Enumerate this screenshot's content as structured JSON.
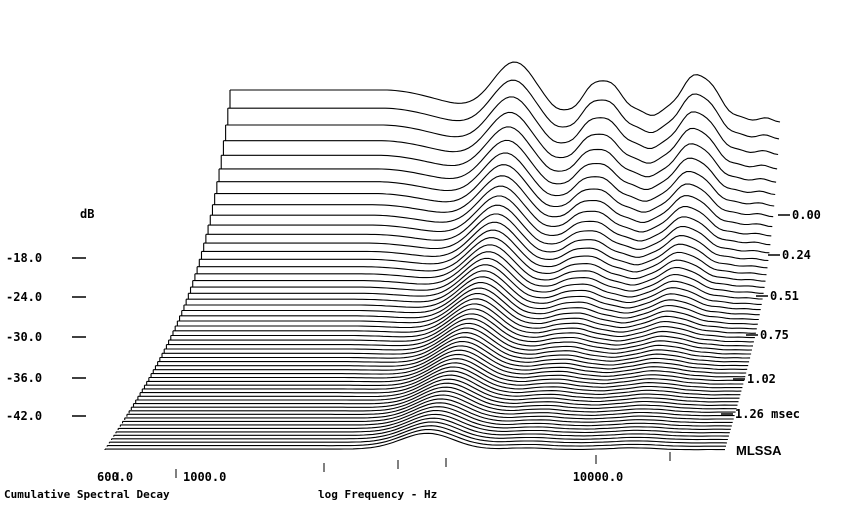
{
  "chart_data": {
    "type": "waterfall",
    "title": "",
    "caption": "Cumulative Spectral Decay",
    "xlabel": "log Frequency - Hz",
    "ylabel": "dB",
    "brand": "MLSSA",
    "x_scale": "log",
    "xlim": [
      550,
      22000
    ],
    "ylim": [
      -45,
      -10
    ],
    "x_ticks": [
      "600.0",
      "1000.0",
      "10000.0"
    ],
    "y_ticks": [
      "-18.0",
      "-24.0",
      "-30.0",
      "-36.0",
      "-42.0"
    ],
    "time_ticks": [
      "0.00",
      "0.24",
      "0.51",
      "0.75",
      "1.02",
      "1.26 msec"
    ],
    "time_range_msec": [
      0,
      1.5
    ]
  }
}
